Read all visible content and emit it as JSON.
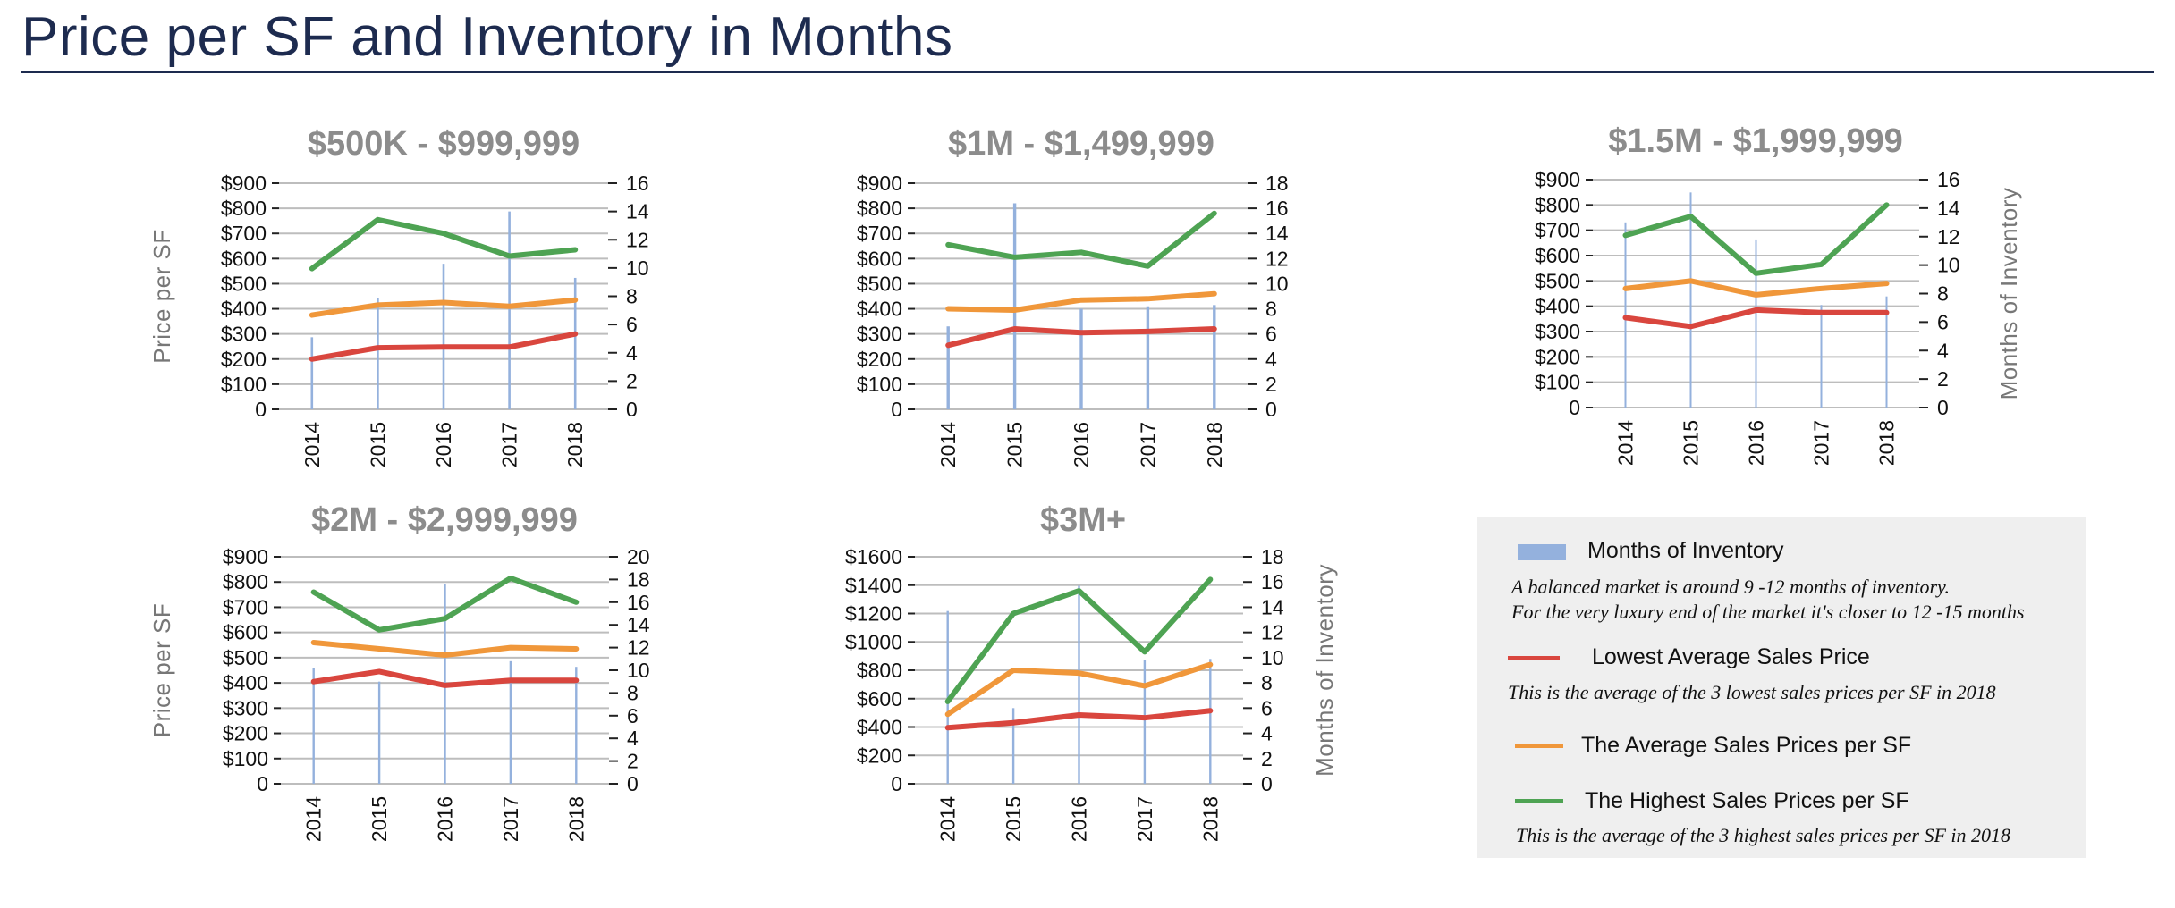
{
  "page": {
    "title": "Price per SF and Inventory in Months"
  },
  "colors": {
    "bar": "#94b1dd",
    "lowest": "#d9463e",
    "average": "#f0973a",
    "highest": "#4ea353",
    "grid": "#bdbdbd",
    "title_rule": "#1d2b4f"
  },
  "legend": {
    "months_label": "Months of Inventory",
    "months_note_1": "A balanced market is around 9 -12 months of inventory.",
    "months_note_2": "For the very luxury end of the market it's closer to 12 -15 months",
    "lowest_label": "Lowest Average Sales Price",
    "lowest_note": "This is the average of the 3 lowest  sales prices per SF in 2018",
    "average_label": "The Average Sales Prices per SF",
    "highest_label": "The Highest Sales Prices per SF",
    "highest_note": "This is the average of the 3 highest  sales prices per SF in 2018"
  },
  "chart_data": [
    {
      "type": "bar",
      "title": "$500K - $999,999",
      "ylabel": "Price per SF",
      "y2label": "",
      "categories": [
        "2014",
        "2015",
        "2016",
        "2017",
        "2018"
      ],
      "ylim": [
        0,
        900
      ],
      "yticks": [
        "0",
        "$100",
        "$200",
        "$300",
        "$400",
        "$500",
        "$600",
        "$700",
        "$800",
        "$900"
      ],
      "y2lim": [
        0,
        16
      ],
      "y2ticks": [
        "0",
        "2",
        "4",
        "6",
        "8",
        "10",
        "12",
        "14",
        "16"
      ],
      "bars": {
        "name": "Months of Inventory",
        "values": [
          5.1,
          7.9,
          10.3,
          14.0,
          9.3
        ]
      },
      "series": [
        {
          "name": "Lowest Average Sales Price",
          "key": "lowest",
          "values": [
            200,
            245,
            248,
            248,
            300
          ]
        },
        {
          "name": "The Average Sales Prices per SF",
          "key": "average",
          "values": [
            375,
            415,
            425,
            410,
            435
          ]
        },
        {
          "name": "The Highest Sales Prices per SF",
          "key": "highest",
          "values": [
            560,
            755,
            700,
            610,
            635
          ]
        }
      ],
      "grid": true
    },
    {
      "type": "bar",
      "title": "$1M - $1,499,999",
      "ylabel": "",
      "y2label": "",
      "categories": [
        "2014",
        "2015",
        "2016",
        "2017",
        "2018"
      ],
      "ylim": [
        0,
        900
      ],
      "yticks": [
        "0",
        "$100",
        "$200",
        "$300",
        "$400",
        "$500",
        "$600",
        "$700",
        "$800",
        "$900"
      ],
      "y2lim": [
        0,
        18
      ],
      "y2ticks": [
        "0",
        "2",
        "4",
        "6",
        "8",
        "10",
        "12",
        "14",
        "16",
        "18"
      ],
      "bars": {
        "name": "Months of Inventory",
        "values": [
          6.6,
          16.4,
          8.0,
          8.2,
          8.3
        ]
      },
      "series": [
        {
          "name": "Lowest Average Sales Price",
          "key": "lowest",
          "values": [
            255,
            320,
            305,
            310,
            320
          ]
        },
        {
          "name": "The Average Sales Prices per SF",
          "key": "average",
          "values": [
            400,
            395,
            435,
            440,
            460
          ]
        },
        {
          "name": "The Highest Sales Prices per SF",
          "key": "highest",
          "values": [
            655,
            605,
            625,
            570,
            780
          ]
        }
      ],
      "grid": true
    },
    {
      "type": "bar",
      "title": "$1.5M - $1,999,999",
      "ylabel": "",
      "y2label": "Months of Inventory",
      "categories": [
        "2014",
        "2015",
        "2016",
        "2017",
        "2018"
      ],
      "ylim": [
        0,
        900
      ],
      "yticks": [
        "0",
        "$100",
        "$200",
        "$300",
        "$400",
        "$500",
        "$600",
        "$700",
        "$800",
        "$900"
      ],
      "y2lim": [
        0,
        16
      ],
      "y2ticks": [
        "0",
        "2",
        "4",
        "6",
        "8",
        "10",
        "12",
        "14",
        "16"
      ],
      "bars": {
        "name": "Months of Inventory",
        "values": [
          13.0,
          15.1,
          11.8,
          7.2,
          7.8
        ]
      },
      "series": [
        {
          "name": "Lowest Average Sales Price",
          "key": "lowest",
          "values": [
            355,
            320,
            385,
            375,
            375
          ]
        },
        {
          "name": "The Average Sales Prices per SF",
          "key": "average",
          "values": [
            470,
            500,
            445,
            470,
            490
          ]
        },
        {
          "name": "The Highest Sales Prices per SF",
          "key": "highest",
          "values": [
            680,
            755,
            530,
            565,
            800
          ]
        }
      ],
      "grid": true
    },
    {
      "type": "bar",
      "title": "$2M - $2,999,999",
      "ylabel": "Price per SF",
      "y2label": "",
      "categories": [
        "2014",
        "2015",
        "2016",
        "2017",
        "2018"
      ],
      "ylim": [
        0,
        900
      ],
      "yticks": [
        "0",
        "$100",
        "$200",
        "$300",
        "$400",
        "$500",
        "$600",
        "$700",
        "$800",
        "$900"
      ],
      "y2lim": [
        0,
        20
      ],
      "y2ticks": [
        "0",
        "2",
        "4",
        "6",
        "8",
        "10",
        "12",
        "14",
        "16",
        "18",
        "20"
      ],
      "bars": {
        "name": "Months of Inventory",
        "values": [
          10.2,
          9.0,
          17.6,
          10.8,
          10.3
        ]
      },
      "series": [
        {
          "name": "Lowest Average Sales Price",
          "key": "lowest",
          "values": [
            405,
            445,
            390,
            410,
            410
          ]
        },
        {
          "name": "The Average Sales Prices per SF",
          "key": "average",
          "values": [
            560,
            535,
            510,
            540,
            535
          ]
        },
        {
          "name": "The Highest Sales Prices per SF",
          "key": "highest",
          "values": [
            760,
            610,
            655,
            815,
            720
          ]
        }
      ],
      "grid": true
    },
    {
      "type": "bar",
      "title": "$3M+",
      "ylabel": "",
      "y2label": "Months of Inventory",
      "categories": [
        "2014",
        "2015",
        "2016",
        "2017",
        "2018"
      ],
      "ylim": [
        0,
        1600
      ],
      "yticks": [
        "0",
        "$200",
        "$400",
        "$600",
        "$800",
        "$1000",
        "$1200",
        "$1400",
        "$1600"
      ],
      "y2lim": [
        0,
        18
      ],
      "y2ticks": [
        "0",
        "2",
        "4",
        "6",
        "8",
        "10",
        "12",
        "14",
        "16",
        "18"
      ],
      "bars": {
        "name": "Months of Inventory",
        "values": [
          13.7,
          6.0,
          15.7,
          9.8,
          9.9
        ]
      },
      "series": [
        {
          "name": "Lowest Average Sales Price",
          "key": "lowest",
          "values": [
            395,
            430,
            485,
            465,
            515
          ]
        },
        {
          "name": "The Average Sales Prices per SF",
          "key": "average",
          "values": [
            490,
            800,
            780,
            690,
            840
          ]
        },
        {
          "name": "The Highest Sales Prices per SF",
          "key": "highest",
          "values": [
            580,
            1200,
            1360,
            930,
            1440
          ]
        }
      ],
      "grid": true
    }
  ]
}
